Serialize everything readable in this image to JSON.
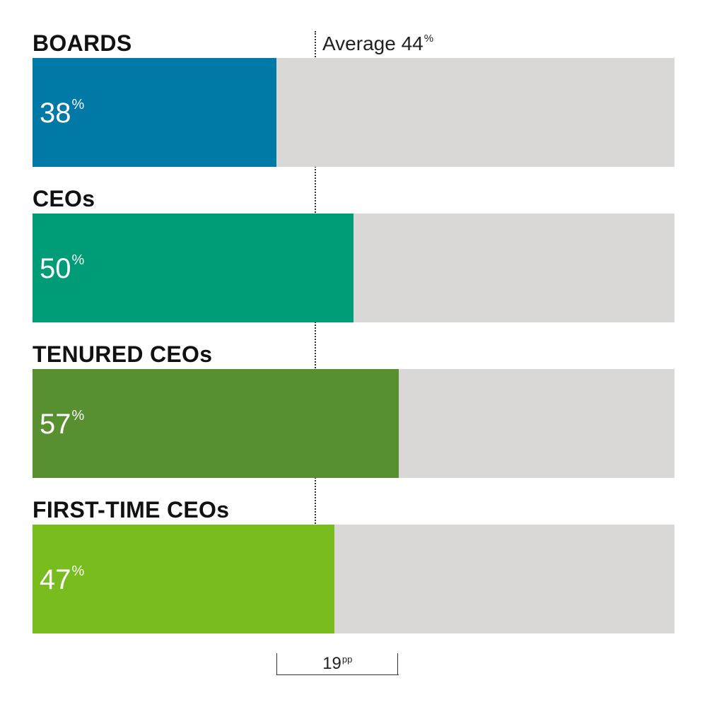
{
  "chart_data": {
    "type": "bar",
    "orientation": "horizontal",
    "categories": [
      "BOARDS",
      "CEOs",
      "TENURED CEOs",
      "FIRST-TIME CEOs"
    ],
    "values": [
      38,
      50,
      57,
      47
    ],
    "value_suffix": "%",
    "xlim": [
      0,
      100
    ],
    "colors": [
      "#0079a6",
      "#009b77",
      "#588f31",
      "#78bc1e"
    ],
    "track_color": "#d9d8d6",
    "average": {
      "label": "Average 44",
      "value": 44,
      "suffix": "%"
    },
    "gap_annotation": {
      "label": "19",
      "suffix": "pp",
      "from": 38,
      "to": 57
    },
    "grid": false,
    "legend": "none"
  }
}
